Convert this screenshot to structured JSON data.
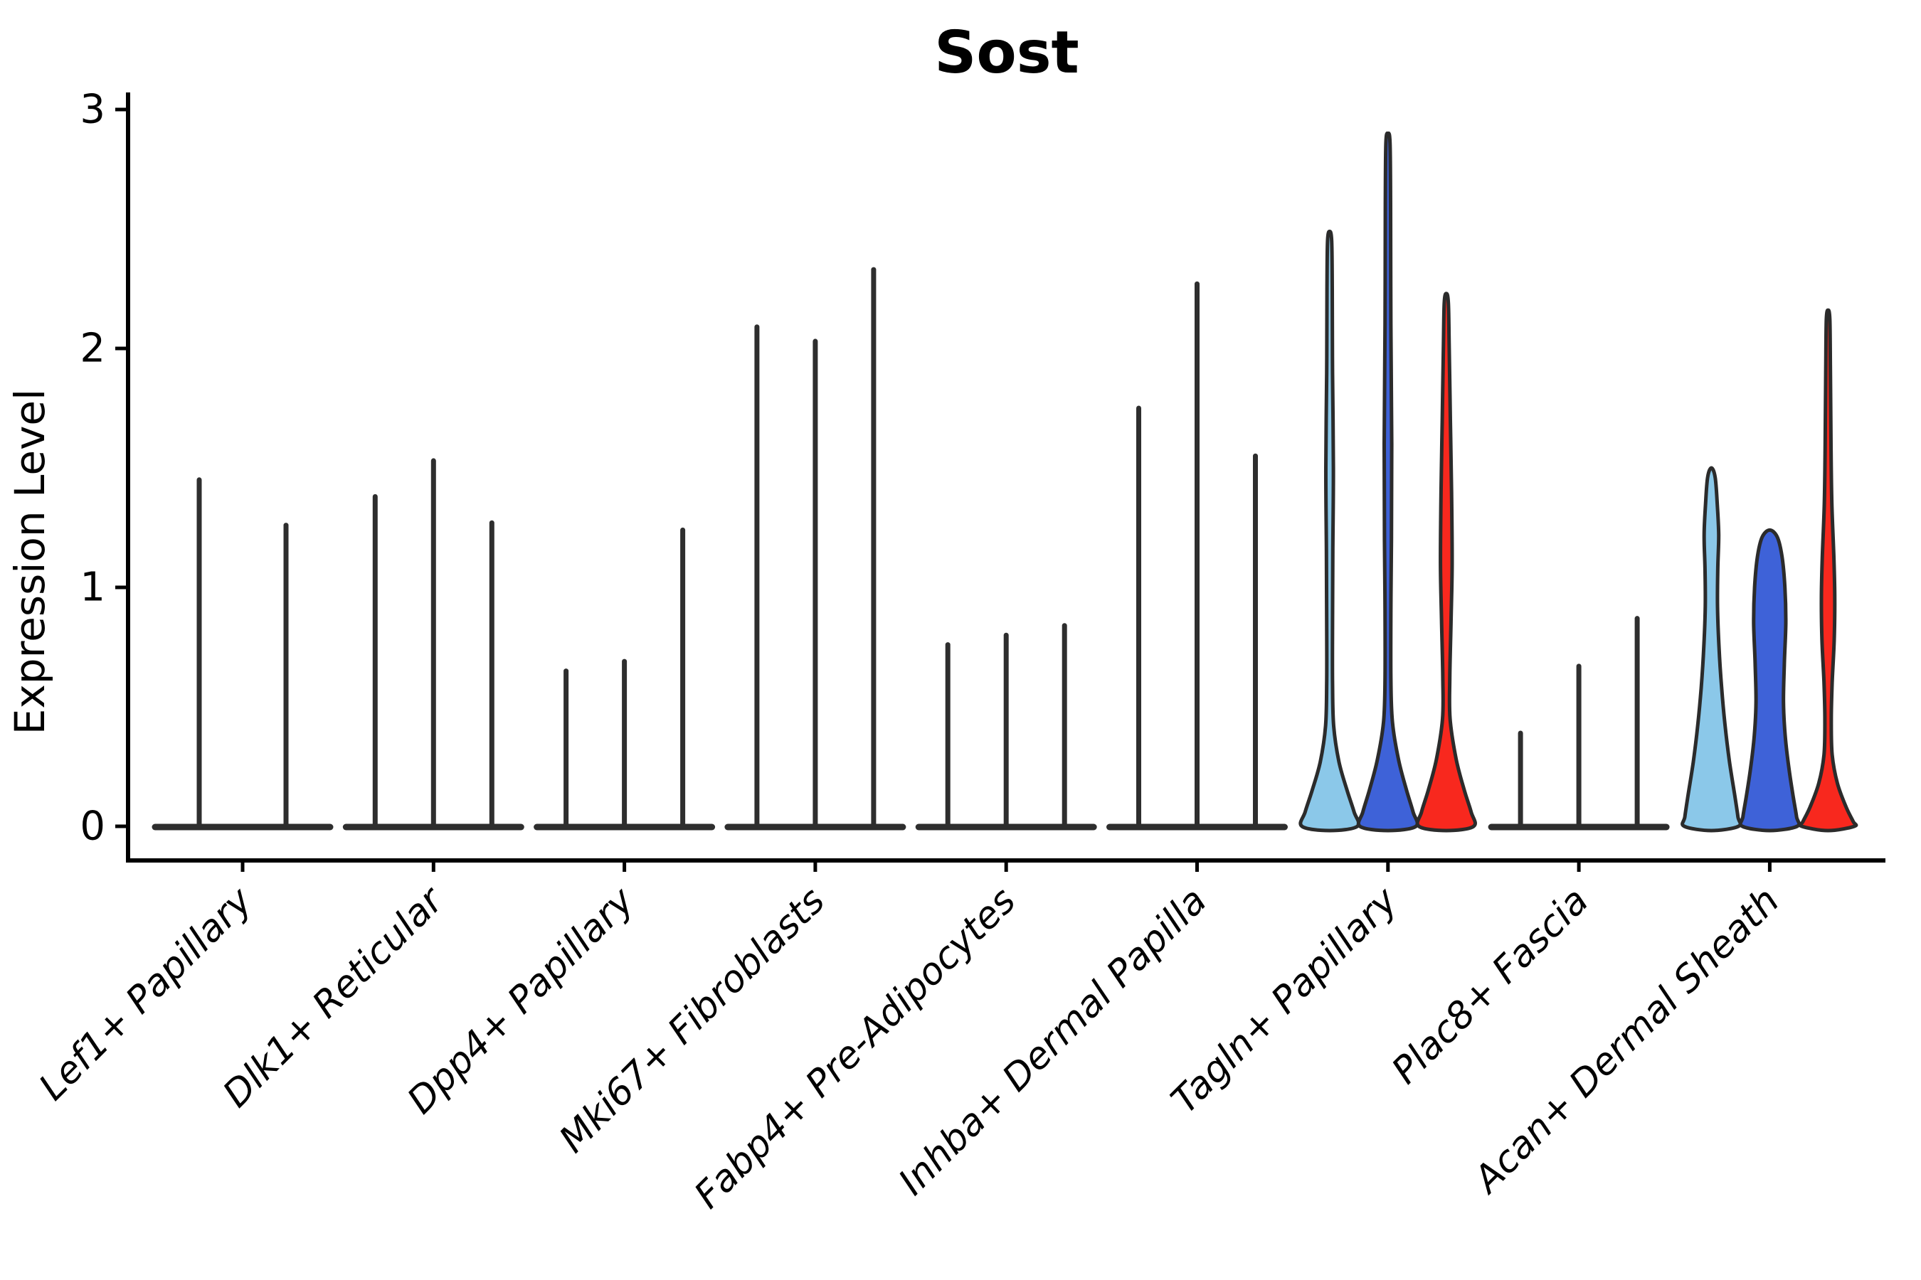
{
  "chart_data": {
    "type": "violin",
    "title": "Sost",
    "ylabel": "Expression Level",
    "xlabel": "",
    "ylim": [
      0,
      3
    ],
    "yticks": [
      "0",
      "1",
      "2",
      "3"
    ],
    "grid": false,
    "legend": false,
    "palette": {
      "light_blue": "#8BC8E9",
      "blue": "#3E62D8",
      "red": "#F8281E",
      "outline": "#2B2B2B",
      "spike": "#2E2E2E",
      "axis": "#000000",
      "text": "#000000"
    },
    "categories": [
      "Lef1+ Papillary",
      "Dlk1+ Reticular",
      "Dpp4+ Papillary",
      "Mki67+ Fibroblasts",
      "Fabp4+ Pre-Adipocytes",
      "Inhba+ Dermal Papilla",
      "Tagln+ Papillary",
      "Plac8+ Fascia",
      "Acan+ Dermal Sheath"
    ],
    "groups": [
      {
        "category": "Lef1+ Papillary",
        "violins": [
          {
            "max": 1.45,
            "kind": "collapsed",
            "color": "spike"
          },
          {
            "max": 1.26,
            "kind": "collapsed",
            "color": "spike"
          }
        ]
      },
      {
        "category": "Dlk1+ Reticular",
        "violins": [
          {
            "max": 1.38,
            "kind": "collapsed",
            "color": "spike"
          },
          {
            "max": 1.53,
            "kind": "collapsed",
            "color": "spike"
          },
          {
            "max": 1.27,
            "kind": "collapsed",
            "color": "spike"
          }
        ]
      },
      {
        "category": "Dpp4+ Papillary",
        "violins": [
          {
            "max": 0.65,
            "kind": "collapsed",
            "color": "spike"
          },
          {
            "max": 0.69,
            "kind": "collapsed",
            "color": "spike"
          },
          {
            "max": 1.24,
            "kind": "collapsed",
            "color": "spike"
          }
        ]
      },
      {
        "category": "Mki67+ Fibroblasts",
        "violins": [
          {
            "max": 2.09,
            "kind": "collapsed",
            "color": "spike"
          },
          {
            "max": 2.03,
            "kind": "collapsed",
            "color": "spike"
          },
          {
            "max": 2.33,
            "kind": "collapsed",
            "color": "spike"
          }
        ]
      },
      {
        "category": "Fabp4+ Pre-Adipocytes",
        "violins": [
          {
            "max": 0.76,
            "kind": "collapsed",
            "color": "spike"
          },
          {
            "max": 0.8,
            "kind": "collapsed",
            "color": "spike"
          },
          {
            "max": 0.84,
            "kind": "collapsed",
            "color": "spike"
          }
        ]
      },
      {
        "category": "Inhba+ Dermal Papilla",
        "violins": [
          {
            "max": 1.75,
            "kind": "collapsed",
            "color": "spike"
          },
          {
            "max": 2.27,
            "kind": "collapsed",
            "color": "spike"
          },
          {
            "max": 1.55,
            "kind": "collapsed",
            "color": "spike"
          }
        ]
      },
      {
        "category": "Tagln+ Papillary",
        "violins": [
          {
            "max": 2.49,
            "kind": "filled",
            "color": "light_blue",
            "profile": [
              [
                2.49,
                0
              ],
              [
                2.45,
                0.07
              ],
              [
                2.25,
                0.09
              ],
              [
                1.9,
                0.1
              ],
              [
                1.5,
                0.13
              ],
              [
                1.15,
                0.11
              ],
              [
                0.85,
                0.1
              ],
              [
                0.6,
                0.1
              ],
              [
                0.42,
                0.14
              ],
              [
                0.27,
                0.32
              ],
              [
                0.15,
                0.6
              ],
              [
                0.06,
                0.84
              ],
              [
                0,
                0.95
              ]
            ]
          },
          {
            "max": 2.9,
            "kind": "filled",
            "color": "blue",
            "profile": [
              [
                2.9,
                0
              ],
              [
                2.86,
                0.07
              ],
              [
                2.6,
                0.09
              ],
              [
                2.1,
                0.1
              ],
              [
                1.6,
                0.13
              ],
              [
                1.2,
                0.12
              ],
              [
                0.9,
                0.1
              ],
              [
                0.62,
                0.1
              ],
              [
                0.44,
                0.15
              ],
              [
                0.28,
                0.36
              ],
              [
                0.15,
                0.64
              ],
              [
                0.06,
                0.86
              ],
              [
                0,
                0.96
              ]
            ]
          },
          {
            "max": 2.23,
            "kind": "filled",
            "color": "red",
            "profile": [
              [
                2.23,
                0
              ],
              [
                2.19,
                0.07
              ],
              [
                2.0,
                0.1
              ],
              [
                1.7,
                0.14
              ],
              [
                1.4,
                0.18
              ],
              [
                1.1,
                0.2
              ],
              [
                0.85,
                0.16
              ],
              [
                0.62,
                0.12
              ],
              [
                0.45,
                0.13
              ],
              [
                0.28,
                0.34
              ],
              [
                0.15,
                0.62
              ],
              [
                0.06,
                0.85
              ],
              [
                0,
                0.94
              ]
            ]
          }
        ]
      },
      {
        "category": "Plac8+ Fascia",
        "violins": [
          {
            "max": 0.39,
            "kind": "collapsed",
            "color": "spike"
          },
          {
            "max": 0.67,
            "kind": "collapsed",
            "color": "spike"
          },
          {
            "max": 0.87,
            "kind": "collapsed",
            "color": "spike"
          }
        ]
      },
      {
        "category": "Acan+ Dermal Sheath",
        "violins": [
          {
            "max": 1.5,
            "kind": "filled",
            "color": "light_blue",
            "profile": [
              [
                1.5,
                0
              ],
              [
                1.46,
                0.13
              ],
              [
                1.35,
                0.2
              ],
              [
                1.22,
                0.25
              ],
              [
                1.08,
                0.22
              ],
              [
                0.92,
                0.21
              ],
              [
                0.75,
                0.26
              ],
              [
                0.58,
                0.35
              ],
              [
                0.42,
                0.47
              ],
              [
                0.27,
                0.62
              ],
              [
                0.13,
                0.8
              ],
              [
                0.04,
                0.91
              ],
              [
                0,
                0.93
              ]
            ]
          },
          {
            "max": 1.24,
            "kind": "filled",
            "color": "blue",
            "profile": [
              [
                1.24,
                0
              ],
              [
                1.21,
                0.26
              ],
              [
                1.13,
                0.42
              ],
              [
                1.0,
                0.52
              ],
              [
                0.85,
                0.55
              ],
              [
                0.68,
                0.5
              ],
              [
                0.52,
                0.47
              ],
              [
                0.38,
                0.53
              ],
              [
                0.24,
                0.66
              ],
              [
                0.12,
                0.81
              ],
              [
                0.04,
                0.92
              ],
              [
                0,
                0.94
              ]
            ]
          },
          {
            "max": 2.16,
            "kind": "filled",
            "color": "red",
            "profile": [
              [
                2.16,
                0
              ],
              [
                2.12,
                0.06
              ],
              [
                1.9,
                0.08
              ],
              [
                1.6,
                0.1
              ],
              [
                1.35,
                0.13
              ],
              [
                1.12,
                0.2
              ],
              [
                0.95,
                0.23
              ],
              [
                0.78,
                0.21
              ],
              [
                0.6,
                0.14
              ],
              [
                0.45,
                0.11
              ],
              [
                0.3,
                0.14
              ],
              [
                0.18,
                0.32
              ],
              [
                0.08,
                0.62
              ],
              [
                0.02,
                0.86
              ],
              [
                0,
                0.9
              ]
            ]
          }
        ]
      }
    ]
  }
}
